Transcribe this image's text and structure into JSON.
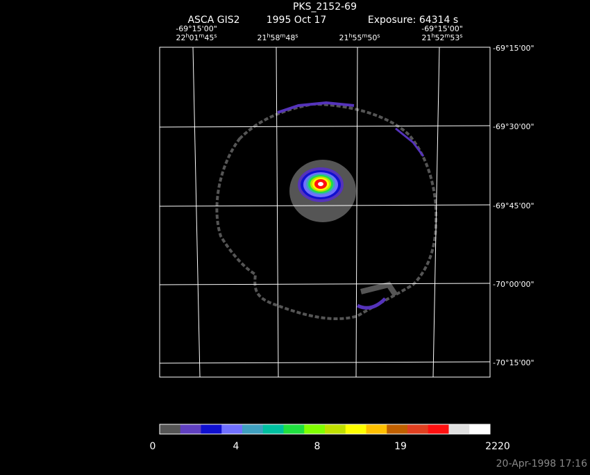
{
  "title": "PKS_2152-69",
  "subtitle": {
    "instrument": "ASCA GIS2",
    "date": "1995 Oct 17",
    "exposure": "Exposure: 64314 s"
  },
  "top_dec_labels": [
    "-69°15'00\"",
    "-69°15'00\""
  ],
  "ra_labels": [
    [
      "22",
      "h",
      "01",
      "m",
      "45",
      "s"
    ],
    [
      "21",
      "h",
      "58",
      "m",
      "48",
      "s"
    ],
    [
      "21",
      "h",
      "55",
      "m",
      "50",
      "s"
    ],
    [
      "21",
      "h",
      "52",
      "m",
      "53",
      "s"
    ]
  ],
  "dec_labels": [
    "-69°15'00\"",
    "-69°30'00\"",
    "-69°45'00\"",
    "-70°00'00\"",
    "-70°15'00\""
  ],
  "colorbar": {
    "labels": [
      0,
      4,
      8,
      19,
      2220
    ]
  },
  "footer": "20-Apr-1998 17:16"
}
